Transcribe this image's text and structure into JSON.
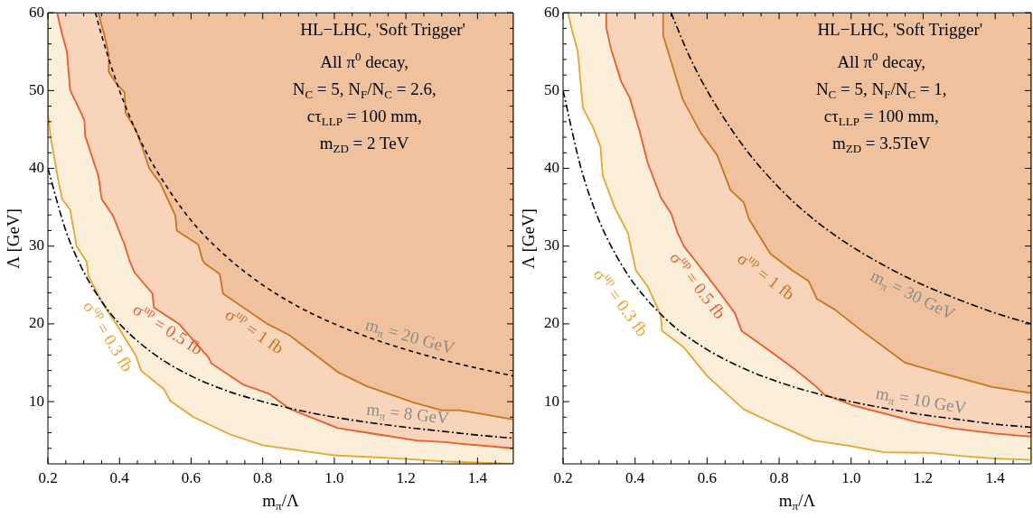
{
  "chart_data": [
    {
      "type": "line",
      "xlabel": "m$_{π}$/Λ",
      "ylabel": "Λ [GeV]",
      "xlim": [
        0.2,
        1.5
      ],
      "ylim": [
        2,
        60
      ],
      "xticks": [
        0.2,
        {
          "value": 0.25,
          "label": null
        },
        {
          "value": 0.3,
          "label": null
        },
        {
          "value": 0.35,
          "label": null
        },
        0.4,
        {
          "value": 0.45,
          "label": null
        },
        {
          "value": 0.5,
          "label": null
        },
        {
          "value": 0.55,
          "label": null
        },
        0.6,
        {
          "value": 0.65,
          "label": null
        },
        {
          "value": 0.7,
          "label": null
        },
        {
          "value": 0.75,
          "label": null
        },
        0.8,
        {
          "value": 0.85,
          "label": null
        },
        {
          "value": 0.9,
          "label": null
        },
        {
          "value": 0.95,
          "label": null
        },
        {
          "value": 1,
          "label": "1.0"
        },
        {
          "value": 1.05,
          "label": null
        },
        {
          "value": 1.1,
          "label": null
        },
        {
          "value": 1.15,
          "label": null
        },
        1.2,
        {
          "value": 1.25,
          "label": null
        },
        {
          "value": 1.3,
          "label": null
        },
        {
          "value": 1.35,
          "label": null
        },
        1.4,
        {
          "value": 1.45,
          "label": null
        }
      ],
      "yticks": [
        {
          "value": 4,
          "label": null
        },
        {
          "value": 6,
          "label": null
        },
        {
          "value": 8,
          "label": null
        },
        10,
        {
          "value": 12,
          "label": null
        },
        {
          "value": 14,
          "label": null
        },
        {
          "value": 16,
          "label": null
        },
        {
          "value": 18,
          "label": null
        },
        20,
        {
          "value": 22,
          "label": null
        },
        {
          "value": 24,
          "label": null
        },
        {
          "value": 26,
          "label": null
        },
        {
          "value": 28,
          "label": null
        },
        30,
        {
          "value": 32,
          "label": null
        },
        {
          "value": 34,
          "label": null
        },
        {
          "value": 36,
          "label": null
        },
        {
          "value": 38,
          "label": null
        },
        40,
        {
          "value": 42,
          "label": null
        },
        {
          "value": 44,
          "label": null
        },
        {
          "value": 46,
          "label": null
        },
        {
          "value": 48,
          "label": null
        },
        50,
        {
          "value": 52,
          "label": null
        },
        {
          "value": 54,
          "label": null
        },
        {
          "value": 56,
          "label": null
        },
        {
          "value": 58,
          "label": null
        },
        60
      ],
      "annotations": [
        "HL−LHC, 'Soft Trigger'",
        "All π$^{0}$ decay,",
        "N$_{C}$ = 5, N$_{F}$/N$_{C}$ = 2.6,",
        "cτ$_{LLP}$ = 100 mm,",
        "m$_{ZD}$ = 2 TeV"
      ],
      "series": [
        {
          "type": "area",
          "name": "σ$^{up}$ = 0.3 fb",
          "color": "#eaa42a",
          "x": [
            0.2,
            0.2,
            0.207,
            0.23,
            0.24,
            0.262,
            0.28,
            0.308,
            0.313,
            0.354,
            0.396,
            0.446,
            0.46,
            0.524,
            0.542,
            0.607,
            0.708,
            0.8,
            1.0,
            1.17,
            1.31,
            1.5,
            1.5
          ],
          "values": [
            60,
            47,
            44.2,
            38.2,
            36,
            34.7,
            30,
            28,
            26.2,
            22.5,
            19.6,
            15.9,
            14,
            11.6,
            10.1,
            8,
            5.8,
            4.4,
            3.1,
            2.7,
            2.3,
            2,
            60
          ]
        },
        {
          "type": "area",
          "name": "σ$^{up}$ = 0.5 fb",
          "color": "#ee5a2a",
          "x": [
            0.226,
            0.235,
            0.253,
            0.262,
            0.302,
            0.304,
            0.341,
            0.35,
            0.382,
            0.414,
            0.428,
            0.442,
            0.492,
            0.496,
            0.566,
            0.648,
            0.657,
            0.745,
            0.818,
            0.874,
            1.01,
            1.12,
            1.23,
            1.31,
            1.35,
            1.5,
            1.5
          ],
          "values": [
            60,
            58.1,
            55,
            50.1,
            46.2,
            44.2,
            39,
            36.1,
            33.9,
            30.2,
            28.1,
            26.6,
            23.9,
            22.1,
            20,
            15.7,
            14.9,
            12.2,
            11,
            9.1,
            6.6,
            5.8,
            5,
            4.8,
            4.6,
            4,
            60
          ]
        },
        {
          "type": "area",
          "name": "σ$^{up}$ = 1 fb",
          "color": "#c8761e",
          "x": [
            0.341,
            0.359,
            0.37,
            0.37,
            0.391,
            0.414,
            0.417,
            0.446,
            0.465,
            0.483,
            0.515,
            0.556,
            0.56,
            0.62,
            0.632,
            0.638,
            0.68,
            0.689,
            0.813,
            0.873,
            1.01,
            1.09,
            1.22,
            1.3,
            1.35,
            1.4,
            1.5,
            1.5
          ],
          "values": [
            60,
            56.9,
            54.6,
            52.4,
            50.9,
            49.8,
            47.1,
            44.9,
            42.5,
            40,
            38,
            33.9,
            32,
            30.2,
            28.2,
            27.8,
            26.4,
            23.9,
            20,
            18.6,
            13.8,
            12,
            9.9,
            8.9,
            8.9,
            8.5,
            7.7,
            60
          ]
        },
        {
          "type": "line",
          "name": "m$_{π}$ = 20 GeV",
          "color": "#000000",
          "line_style": "dashed",
          "x": [
            0.333,
            0.35,
            0.4,
            0.45,
            0.5,
            0.6,
            0.7,
            0.8,
            0.9,
            1.0,
            1.1,
            1.2,
            1.3,
            1.4,
            1.5
          ],
          "values": [
            60,
            57.1,
            50,
            44.4,
            40,
            33.3,
            28.6,
            25,
            22.2,
            20,
            18.2,
            16.7,
            15.4,
            14.3,
            13.3
          ]
        },
        {
          "type": "line",
          "name": "m$_{π}$ = 8 GeV",
          "color": "#000000",
          "line_style": "dashdot",
          "x": [
            0.2,
            0.25,
            0.3,
            0.35,
            0.4,
            0.5,
            0.6,
            0.7,
            0.8,
            0.9,
            1.0,
            1.1,
            1.2,
            1.3,
            1.4,
            1.5
          ],
          "values": [
            40,
            32,
            26.7,
            22.9,
            20,
            16,
            13.3,
            11.4,
            10,
            8.9,
            8,
            7.3,
            6.7,
            6.2,
            5.7,
            5.3
          ]
        }
      ]
    },
    {
      "type": "line",
      "xlabel": "m$_{π}$/Λ",
      "ylabel": "Λ [GeV]",
      "xlim": [
        0.2,
        1.5
      ],
      "ylim": [
        2,
        60
      ],
      "xticks": [
        0.2,
        {
          "value": 0.25,
          "label": null
        },
        {
          "value": 0.3,
          "label": null
        },
        {
          "value": 0.35,
          "label": null
        },
        0.4,
        {
          "value": 0.45,
          "label": null
        },
        {
          "value": 0.5,
          "label": null
        },
        {
          "value": 0.55,
          "label": null
        },
        0.6,
        {
          "value": 0.65,
          "label": null
        },
        {
          "value": 0.7,
          "label": null
        },
        {
          "value": 0.75,
          "label": null
        },
        0.8,
        {
          "value": 0.85,
          "label": null
        },
        {
          "value": 0.9,
          "label": null
        },
        {
          "value": 0.95,
          "label": null
        },
        {
          "value": 1,
          "label": "1.0"
        },
        {
          "value": 1.05,
          "label": null
        },
        {
          "value": 1.1,
          "label": null
        },
        {
          "value": 1.15,
          "label": null
        },
        1.2,
        {
          "value": 1.25,
          "label": null
        },
        {
          "value": 1.3,
          "label": null
        },
        {
          "value": 1.35,
          "label": null
        },
        1.4,
        {
          "value": 1.45,
          "label": null
        }
      ],
      "yticks": [
        {
          "value": 4,
          "label": null
        },
        {
          "value": 6,
          "label": null
        },
        {
          "value": 8,
          "label": null
        },
        10,
        {
          "value": 12,
          "label": null
        },
        {
          "value": 14,
          "label": null
        },
        {
          "value": 16,
          "label": null
        },
        {
          "value": 18,
          "label": null
        },
        20,
        {
          "value": 22,
          "label": null
        },
        {
          "value": 24,
          "label": null
        },
        {
          "value": 26,
          "label": null
        },
        {
          "value": 28,
          "label": null
        },
        30,
        {
          "value": 32,
          "label": null
        },
        {
          "value": 34,
          "label": null
        },
        {
          "value": 36,
          "label": null
        },
        {
          "value": 38,
          "label": null
        },
        40,
        {
          "value": 42,
          "label": null
        },
        {
          "value": 44,
          "label": null
        },
        {
          "value": 46,
          "label": null
        },
        {
          "value": 48,
          "label": null
        },
        50,
        {
          "value": 52,
          "label": null
        },
        {
          "value": 54,
          "label": null
        },
        {
          "value": 56,
          "label": null
        },
        {
          "value": 58,
          "label": null
        },
        60
      ],
      "annotations": [
        "HL−LHC, 'Soft Trigger'",
        "All π$^{0}$ decay,",
        "N$_{C}$ = 5, N$_{F}$/N$_{C}$ = 1,",
        "cτ$_{LLP}$ = 100 mm,",
        "m$_{ZD}$ = 3.5TeV"
      ],
      "series": [
        {
          "type": "area",
          "name": "σ$^{up}$ = 0.3 fb",
          "color": "#eaa42a",
          "x": [
            0.214,
            0.223,
            0.241,
            0.255,
            0.283,
            0.304,
            0.31,
            0.343,
            0.38,
            0.402,
            0.434,
            0.471,
            0.475,
            0.535,
            0.6,
            0.702,
            0.785,
            0.895,
            0.997,
            1.09,
            1.22,
            1.31,
            1.39,
            1.5,
            1.5
          ],
          "values": [
            60,
            58.1,
            55,
            47.8,
            45.3,
            42.8,
            39.1,
            35,
            31.7,
            26.9,
            24.9,
            21.2,
            19.1,
            17,
            13.3,
            9,
            7.2,
            5,
            4.3,
            3.5,
            3.4,
            3,
            2.7,
            2.5,
            60
          ]
        },
        {
          "type": "area",
          "name": "σ$^{up}$ = 0.5 fb",
          "color": "#ee5a2a",
          "x": [
            0.32,
            0.32,
            0.334,
            0.362,
            0.385,
            0.412,
            0.435,
            0.445,
            0.472,
            0.5,
            0.518,
            0.537,
            0.566,
            0.621,
            0.677,
            0.696,
            0.76,
            0.848,
            0.899,
            0.926,
            1.0,
            1.18,
            1.29,
            1.4,
            1.5,
            1.5
          ],
          "values": [
            60,
            58.1,
            55.2,
            51.1,
            49.1,
            44.9,
            40.7,
            39.5,
            36.2,
            34.2,
            31.7,
            29.9,
            28.2,
            24.9,
            21.4,
            19.1,
            17,
            14,
            12.1,
            10.9,
            9.6,
            7.4,
            6.5,
            5.9,
            5.5,
            60
          ]
        },
        {
          "type": "area",
          "name": "σ$^{up}$ = 1 fb",
          "color": "#c8761e",
          "x": [
            0.478,
            0.478,
            0.532,
            0.582,
            0.628,
            0.665,
            0.702,
            0.716,
            0.776,
            0.836,
            0.882,
            0.905,
            0.956,
            1.03,
            1.15,
            1.21,
            1.39,
            1.5,
            1.5
          ],
          "values": [
            60,
            57.1,
            48.9,
            44.6,
            41.7,
            37.2,
            35.6,
            33.5,
            29,
            26.9,
            25.5,
            23.2,
            21.8,
            19.1,
            15,
            14.2,
            11.9,
            11.1,
            60
          ]
        },
        {
          "type": "line",
          "name": "m$_{π}$ = 30 GeV",
          "color": "#000000",
          "line_style": "dashdot",
          "x": [
            0.5,
            0.55,
            0.6,
            0.7,
            0.8,
            0.9,
            1.0,
            1.1,
            1.2,
            1.3,
            1.4,
            1.5
          ],
          "values": [
            60,
            54.5,
            50,
            42.9,
            37.5,
            33.3,
            30,
            27.3,
            25,
            23.1,
            21.4,
            20
          ]
        },
        {
          "type": "line",
          "name": "m$_{π}$ = 10 GeV",
          "color": "#000000",
          "line_style": "dashdot",
          "x": [
            0.2,
            0.25,
            0.3,
            0.35,
            0.4,
            0.5,
            0.6,
            0.7,
            0.8,
            0.9,
            1.0,
            1.1,
            1.2,
            1.3,
            1.4,
            1.5
          ],
          "values": [
            50,
            40,
            33.3,
            28.6,
            25,
            20,
            16.7,
            14.3,
            12.5,
            11.1,
            10,
            9.1,
            8.3,
            7.7,
            7.1,
            6.7
          ]
        }
      ]
    }
  ]
}
